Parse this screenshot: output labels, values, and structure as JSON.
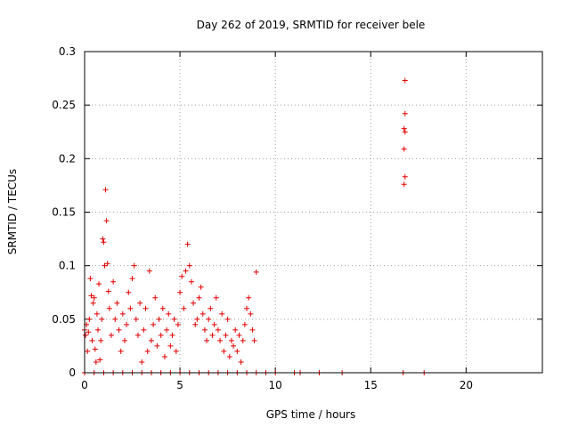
{
  "chart_data": {
    "type": "scatter",
    "title": "Day 262 of 2019, SRMTID for receiver bele",
    "xlabel": "GPS time / hours",
    "ylabel": "SRMTID / TECUs",
    "xlim": [
      0,
      24
    ],
    "ylim": [
      0,
      0.3
    ],
    "xticks": [
      0,
      5,
      10,
      15,
      20
    ],
    "xtick_labels": [
      "0",
      "5",
      "10",
      "15",
      "20"
    ],
    "yticks": [
      0,
      0.05,
      0.1,
      0.15,
      0.2,
      0.25,
      0.3
    ],
    "ytick_labels": [
      "0",
      "0.05",
      "0.1",
      "0.15",
      "0.2",
      "0.25",
      "0.3"
    ],
    "grid": true,
    "marker": "plus",
    "color": "#e00000",
    "series": [
      {
        "name": "SRMTID",
        "points": [
          [
            0.0,
            0.04
          ],
          [
            0.05,
            0.035
          ],
          [
            0.1,
            0.045
          ],
          [
            0.15,
            0.02
          ],
          [
            0.2,
            0.038
          ],
          [
            0.25,
            0.05
          ],
          [
            0.3,
            0.088
          ],
          [
            0.35,
            0.072
          ],
          [
            0.4,
            0.03
          ],
          [
            0.45,
            0.065
          ],
          [
            0.5,
            0.07
          ],
          [
            0.55,
            0.022
          ],
          [
            0.6,
            0.01
          ],
          [
            0.65,
            0.055
          ],
          [
            0.7,
            0.04
          ],
          [
            0.75,
            0.083
          ],
          [
            0.8,
            0.012
          ],
          [
            0.85,
            0.03
          ],
          [
            0.9,
            0.05
          ],
          [
            0.95,
            0.125
          ],
          [
            1.0,
            0.122
          ],
          [
            1.05,
            0.1
          ],
          [
            1.1,
            0.171
          ],
          [
            1.15,
            0.142
          ],
          [
            1.2,
            0.102
          ],
          [
            1.25,
            0.076
          ],
          [
            1.3,
            0.06
          ],
          [
            1.4,
            0.035
          ],
          [
            1.5,
            0.085
          ],
          [
            1.6,
            0.05
          ],
          [
            1.7,
            0.065
          ],
          [
            1.8,
            0.04
          ],
          [
            1.9,
            0.02
          ],
          [
            2.0,
            0.055
          ],
          [
            2.1,
            0.03
          ],
          [
            2.2,
            0.045
          ],
          [
            2.3,
            0.075
          ],
          [
            2.4,
            0.06
          ],
          [
            2.5,
            0.088
          ],
          [
            2.6,
            0.1
          ],
          [
            2.7,
            0.05
          ],
          [
            2.8,
            0.035
          ],
          [
            2.9,
            0.065
          ],
          [
            3.0,
            0.01
          ],
          [
            3.1,
            0.04
          ],
          [
            3.2,
            0.06
          ],
          [
            3.3,
            0.02
          ],
          [
            3.4,
            0.095
          ],
          [
            3.5,
            0.03
          ],
          [
            3.6,
            0.045
          ],
          [
            3.7,
            0.07
          ],
          [
            3.8,
            0.025
          ],
          [
            3.9,
            0.05
          ],
          [
            4.0,
            0.035
          ],
          [
            4.1,
            0.06
          ],
          [
            4.2,
            0.015
          ],
          [
            4.3,
            0.04
          ],
          [
            4.4,
            0.055
          ],
          [
            4.5,
            0.025
          ],
          [
            4.6,
            0.035
          ],
          [
            4.7,
            0.05
          ],
          [
            4.8,
            0.02
          ],
          [
            4.9,
            0.045
          ],
          [
            5.0,
            0.075
          ],
          [
            5.1,
            0.09
          ],
          [
            5.2,
            0.06
          ],
          [
            5.3,
            0.095
          ],
          [
            5.4,
            0.12
          ],
          [
            5.5,
            0.1
          ],
          [
            5.6,
            0.085
          ],
          [
            5.7,
            0.065
          ],
          [
            5.8,
            0.045
          ],
          [
            5.9,
            0.05
          ],
          [
            6.0,
            0.07
          ],
          [
            6.1,
            0.08
          ],
          [
            6.2,
            0.055
          ],
          [
            6.3,
            0.04
          ],
          [
            6.4,
            0.03
          ],
          [
            6.5,
            0.05
          ],
          [
            6.6,
            0.06
          ],
          [
            6.7,
            0.035
          ],
          [
            6.8,
            0.045
          ],
          [
            6.9,
            0.07
          ],
          [
            7.0,
            0.04
          ],
          [
            7.1,
            0.03
          ],
          [
            7.2,
            0.055
          ],
          [
            7.3,
            0.02
          ],
          [
            7.4,
            0.035
          ],
          [
            7.5,
            0.05
          ],
          [
            7.6,
            0.015
          ],
          [
            7.7,
            0.03
          ],
          [
            7.8,
            0.025
          ],
          [
            7.9,
            0.04
          ],
          [
            8.0,
            0.02
          ],
          [
            8.1,
            0.035
          ],
          [
            8.2,
            0.01
          ],
          [
            8.3,
            0.03
          ],
          [
            8.4,
            0.045
          ],
          [
            8.5,
            0.06
          ],
          [
            8.6,
            0.07
          ],
          [
            8.7,
            0.055
          ],
          [
            8.8,
            0.04
          ],
          [
            8.9,
            0.03
          ],
          [
            9.0,
            0.094
          ],
          [
            0.0,
            0.0
          ],
          [
            0.5,
            0.0
          ],
          [
            1.0,
            0.0
          ],
          [
            1.5,
            0.0
          ],
          [
            2.0,
            0.0
          ],
          [
            2.5,
            0.0
          ],
          [
            3.0,
            0.0
          ],
          [
            3.5,
            0.0
          ],
          [
            4.0,
            0.0
          ],
          [
            4.5,
            0.0
          ],
          [
            5.0,
            0.0
          ],
          [
            5.5,
            0.0
          ],
          [
            6.0,
            0.0
          ],
          [
            6.5,
            0.0
          ],
          [
            7.0,
            0.0
          ],
          [
            7.5,
            0.0
          ],
          [
            8.0,
            0.0
          ],
          [
            8.5,
            0.0
          ],
          [
            9.0,
            0.0
          ],
          [
            9.5,
            0.0
          ],
          [
            10.0,
            0.0
          ],
          [
            11.0,
            0.0
          ],
          [
            11.3,
            0.0
          ],
          [
            12.3,
            0.0
          ],
          [
            13.5,
            0.0
          ],
          [
            16.7,
            0.0
          ],
          [
            17.8,
            0.0
          ],
          [
            16.8,
            0.273
          ],
          [
            16.8,
            0.242
          ],
          [
            16.75,
            0.228
          ],
          [
            16.8,
            0.225
          ],
          [
            16.75,
            0.209
          ],
          [
            16.8,
            0.183
          ],
          [
            16.75,
            0.176
          ]
        ]
      }
    ]
  }
}
